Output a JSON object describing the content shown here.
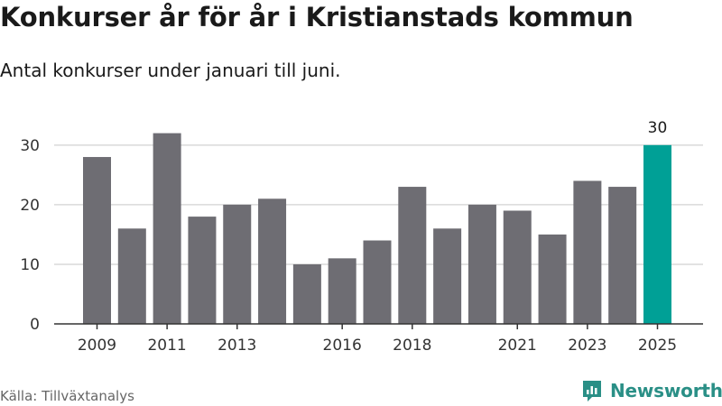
{
  "title": "Konkurser år för år i Kristianstads kommun",
  "subtitle": "Antal konkurser under januari till juni.",
  "source": "Källa: Tillväxtanalys",
  "brand": "Newsworthy",
  "colors": {
    "bar": "#6e6d73",
    "highlight": "#00a096",
    "grid": "#d9d9d9",
    "axis": "#333333",
    "brand": "#2a8f86"
  },
  "chart_data": {
    "type": "bar",
    "categories": [
      "2009",
      "2010",
      "2011",
      "2012",
      "2013",
      "2014",
      "2015",
      "2016",
      "2017",
      "2018",
      "2019",
      "2020",
      "2021",
      "2022",
      "2023",
      "2024",
      "2025"
    ],
    "values": [
      28,
      16,
      32,
      18,
      20,
      21,
      10,
      11,
      14,
      23,
      16,
      20,
      19,
      15,
      24,
      23,
      30
    ],
    "tick_labels": [
      "2009",
      "2011",
      "2013",
      "2016",
      "2018",
      "2021",
      "2023",
      "2025"
    ],
    "yticks": [
      0,
      10,
      20,
      30
    ],
    "ylim": [
      0,
      33
    ],
    "highlight": "2025",
    "highlight_label": "30",
    "grid": true
  }
}
